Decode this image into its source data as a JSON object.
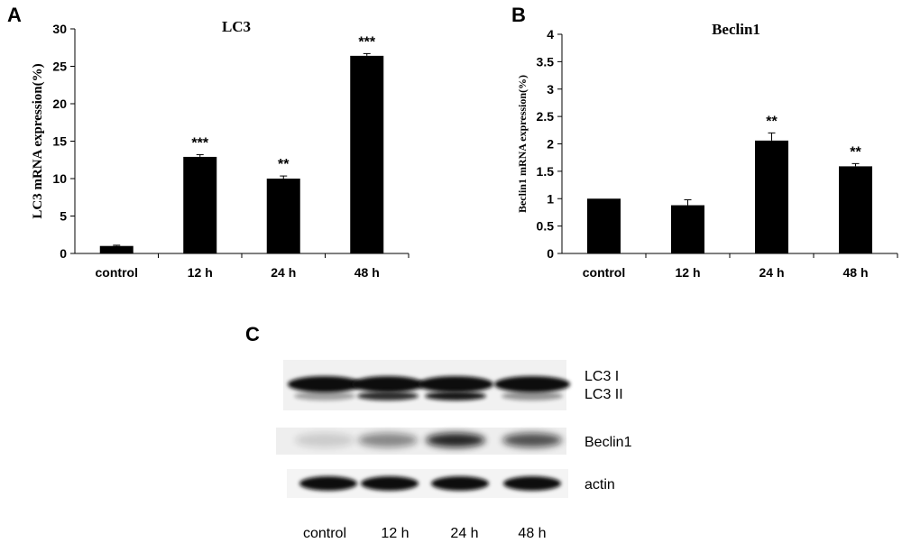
{
  "chart_data": [
    {
      "panel_letter": "A",
      "type": "bar",
      "title": "LC3",
      "ylabel": "LC3  mRNA expression(%)",
      "xlabel": "",
      "categories": [
        "control",
        "12 h",
        "24 h",
        "48 h"
      ],
      "values": [
        1.0,
        12.9,
        10.0,
        26.4
      ],
      "errors": [
        0.1,
        0.3,
        0.35,
        0.3
      ],
      "significance": [
        "",
        "***",
        "**",
        "***"
      ],
      "ylim": [
        0,
        30
      ],
      "yticks": [
        0,
        5,
        10,
        15,
        20,
        25,
        30
      ],
      "ytick_labels": [
        "0",
        "5",
        "10",
        "15",
        "20",
        "25",
        "30"
      ],
      "bar_color": "#000000",
      "grid": false
    },
    {
      "panel_letter": "B",
      "type": "bar",
      "title": "Beclin1",
      "ylabel": "Beclin1  mRNA expression(%)",
      "xlabel": "",
      "categories": [
        "control",
        "12 h",
        "24 h",
        "48 h"
      ],
      "values": [
        1.0,
        0.88,
        2.06,
        1.59
      ],
      "errors": [
        0.0,
        0.1,
        0.14,
        0.05
      ],
      "significance": [
        "",
        "",
        "**",
        "**"
      ],
      "ylim": [
        0,
        4
      ],
      "yticks": [
        0,
        0.5,
        1,
        1.5,
        2,
        2.5,
        3,
        3.5,
        4
      ],
      "ytick_labels": [
        "0",
        "0.5",
        "1",
        "1.5",
        "2",
        "2.5",
        "3",
        "3.5",
        "4"
      ],
      "bar_color": "#000000",
      "grid": false
    }
  ],
  "blot": {
    "panel_letter": "C",
    "rows": [
      {
        "label": "LC3 I"
      },
      {
        "label": "LC3 II"
      },
      {
        "label": "Beclin1"
      },
      {
        "label": "actin"
      }
    ],
    "lanes": [
      "control",
      "12 h",
      "24 h",
      "48 h"
    ],
    "beclin1_band_intensity": [
      0.15,
      0.45,
      0.9,
      0.7
    ]
  }
}
